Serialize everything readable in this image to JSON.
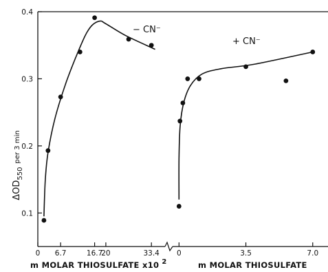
{
  "chart_data": [
    {
      "type": "scatter",
      "panel": "left",
      "xlabel": "m MOLAR  THIOSULFATE x10",
      "xlabel_exponent": "2",
      "ylabel": "ΔOD",
      "ylabel_subscript": "550",
      "ylabel_suffix": "per 3 min",
      "xlim": [
        0,
        37
      ],
      "ylim": [
        0.05,
        0.4
      ],
      "x_ticks": [
        0,
        6.7,
        16.7,
        20,
        33.4
      ],
      "x_tick_labels": [
        "0",
        "6.7",
        "16.7",
        "20",
        "33.4"
      ],
      "y_ticks": [
        0.1,
        0.2,
        0.3,
        0.4
      ],
      "y_tick_labels": [
        "0.1",
        "0.2",
        "0.3",
        "0.4"
      ],
      "series": [
        {
          "name": "− CN⁻",
          "points": [
            {
              "x": 1.8,
              "y": 0.089
            },
            {
              "x": 3.0,
              "y": 0.193
            },
            {
              "x": 6.7,
              "y": 0.273
            },
            {
              "x": 12.4,
              "y": 0.34
            },
            {
              "x": 16.7,
              "y": 0.391
            },
            {
              "x": 26.7,
              "y": 0.359
            },
            {
              "x": 33.4,
              "y": 0.35
            }
          ],
          "curve": [
            {
              "x": 1.8,
              "y": 0.095
            },
            {
              "x": 2.2,
              "y": 0.15
            },
            {
              "x": 3.0,
              "y": 0.19
            },
            {
              "x": 5.0,
              "y": 0.24
            },
            {
              "x": 8.0,
              "y": 0.29
            },
            {
              "x": 11.0,
              "y": 0.33
            },
            {
              "x": 14.0,
              "y": 0.365
            },
            {
              "x": 16.0,
              "y": 0.38
            },
            {
              "x": 18.3,
              "y": 0.386
            },
            {
              "x": 20.0,
              "y": 0.382
            },
            {
              "x": 26.0,
              "y": 0.364
            },
            {
              "x": 34.5,
              "y": 0.344
            }
          ]
        }
      ],
      "grid": false
    },
    {
      "type": "scatter",
      "panel": "right",
      "xlabel": "m MOLAR  THIOSULFATE",
      "xlim": [
        -0.3,
        7.8
      ],
      "ylim": [
        0.05,
        0.4
      ],
      "x_ticks": [
        0,
        3.5,
        7.0
      ],
      "x_tick_labels": [
        "0",
        "3.5",
        "7.0"
      ],
      "series": [
        {
          "name": "+ CN⁻",
          "points": [
            {
              "x": 0.0,
              "y": 0.11
            },
            {
              "x": 0.05,
              "y": 0.237
            },
            {
              "x": 0.2,
              "y": 0.264
            },
            {
              "x": 0.45,
              "y": 0.3
            },
            {
              "x": 1.05,
              "y": 0.3
            },
            {
              "x": 3.5,
              "y": 0.318
            },
            {
              "x": 5.6,
              "y": 0.297
            },
            {
              "x": 7.0,
              "y": 0.34
            }
          ],
          "curve": [
            {
              "x": 0.0,
              "y": 0.12
            },
            {
              "x": 0.0,
              "y": 0.18
            },
            {
              "x": 0.06,
              "y": 0.23
            },
            {
              "x": 0.25,
              "y": 0.265
            },
            {
              "x": 0.6,
              "y": 0.29
            },
            {
              "x": 1.2,
              "y": 0.307
            },
            {
              "x": 2.2,
              "y": 0.315
            },
            {
              "x": 4.0,
              "y": 0.322
            },
            {
              "x": 7.0,
              "y": 0.34
            }
          ]
        }
      ],
      "grid": false
    }
  ]
}
